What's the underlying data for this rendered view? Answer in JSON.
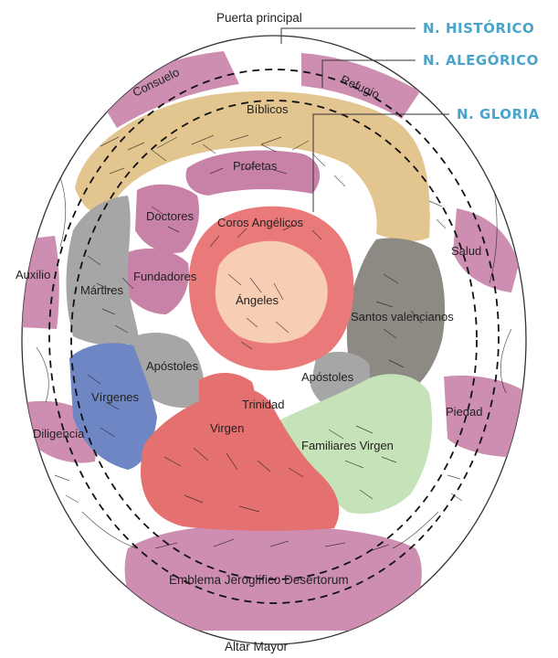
{
  "labels": {
    "entrance": "Puerta principal",
    "altar": "Altar Mayor",
    "consuelo": "Consuelo",
    "refugio": "Refugio",
    "auxilio": "Auxilio",
    "salud": "Salud",
    "diligencia": "Diligencia",
    "piedad": "Piedad",
    "emblema": "Emblema Jeroglífico Desertorum",
    "biblicos": "Bíblicos",
    "profetas": "Profetas",
    "doctores": "Doctores",
    "fundadores": "Fundadores",
    "martires": "Mártires",
    "santos_valencianos": "Santos valencianos",
    "apostoles_left": "Apóstoles",
    "apostoles_right": "Apóstoles",
    "virgenes": "Vírgenes",
    "trinidad": "Trinidad",
    "virgen": "Virgen",
    "familiares_virgen": "Familiares Virgen",
    "coros_angelicos": "Coros Angélicos",
    "angeles": "Ángeles"
  },
  "legend": {
    "historico": "N. HISTÓRICO",
    "alegorico": "N. ALEGÓRICO",
    "gloria": "N. GLORIA"
  },
  "colors": {
    "historico_band": "#c882a8",
    "biblicos": "#e3c58f",
    "martires": "#a6a6a6",
    "santos_valencianos": "#8d8a84",
    "virgenes": "#6f86c4",
    "familiares_virgen": "#c5e2b8",
    "virgen": "#e57070",
    "coros": "#ea7a7a",
    "angeles": "#f7cdb4",
    "legend_text": "#4aa3c9"
  }
}
